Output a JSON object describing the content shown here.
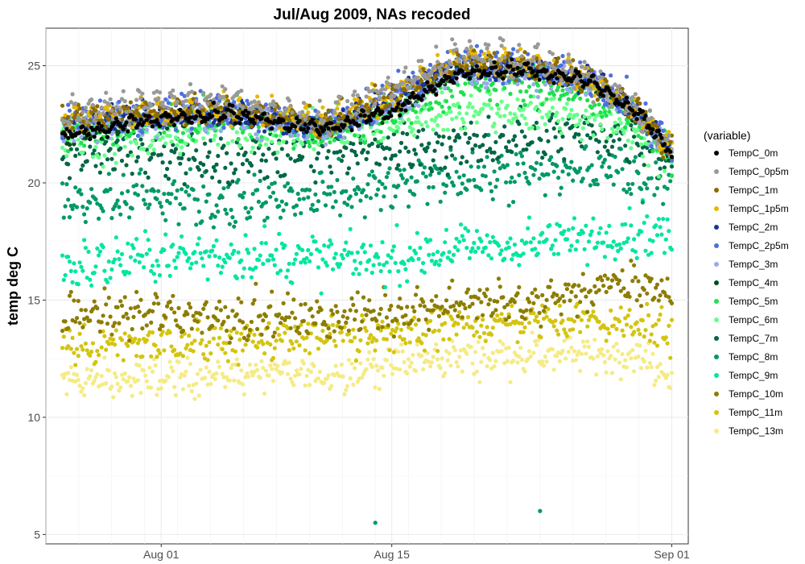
{
  "chart_data": {
    "type": "scatter",
    "title": "Jul/Aug 2009, NAs recoded",
    "xlabel": "",
    "ylabel": "temp deg C",
    "x_start": "2009-07-26",
    "x_end": "2009-09-01",
    "xlim": [
      "2009-07-25",
      "2009-09-02"
    ],
    "ylim": [
      4.6,
      26.6
    ],
    "x_ticks": [
      {
        "label": "Aug 01",
        "date": "2009-08-01"
      },
      {
        "label": "Aug 15",
        "date": "2009-08-15"
      },
      {
        "label": "Sep 01",
        "date": "2009-09-01"
      }
    ],
    "y_ticks": [
      5,
      10,
      15,
      20,
      25
    ],
    "grid": true,
    "legend": {
      "title": "(variable)",
      "position": "right"
    },
    "series": [
      {
        "name": "TempC_0m",
        "color": "#000000",
        "knots": [
          [
            0,
            21.9
          ],
          [
            5,
            22.6
          ],
          [
            10,
            22.9
          ],
          [
            16,
            22.2
          ],
          [
            20,
            23.0
          ],
          [
            24,
            24.6
          ],
          [
            28,
            24.8
          ],
          [
            32,
            24.3
          ],
          [
            35,
            22.9
          ],
          [
            37,
            21.2
          ]
        ],
        "spread": 0.12,
        "osc": 0.35
      },
      {
        "name": "TempC_0p5m",
        "color": "#999999",
        "knots": [
          [
            0,
            22.7
          ],
          [
            5,
            23.2
          ],
          [
            10,
            23.3
          ],
          [
            16,
            22.5
          ],
          [
            20,
            23.8
          ],
          [
            24,
            25.3
          ],
          [
            28,
            25.1
          ],
          [
            32,
            24.4
          ],
          [
            35,
            22.9
          ],
          [
            37,
            21.2
          ]
        ],
        "spread": 0.25,
        "osc": 0.8
      },
      {
        "name": "TempC_1m",
        "color": "#8B6C00",
        "knots": [
          [
            0,
            22.6
          ],
          [
            5,
            22.9
          ],
          [
            10,
            23.0
          ],
          [
            16,
            22.4
          ],
          [
            20,
            23.5
          ],
          [
            24,
            25.0
          ],
          [
            28,
            24.9
          ],
          [
            32,
            24.3
          ],
          [
            35,
            22.9
          ],
          [
            37,
            21.2
          ]
        ],
        "spread": 0.2,
        "osc": 0.6
      },
      {
        "name": "TempC_1p5m",
        "color": "#E6B800",
        "knots": [
          [
            0,
            22.6
          ],
          [
            5,
            22.9
          ],
          [
            10,
            23.1
          ],
          [
            16,
            22.4
          ],
          [
            20,
            23.6
          ],
          [
            24,
            25.1
          ],
          [
            28,
            25.0
          ],
          [
            32,
            24.3
          ],
          [
            35,
            22.9
          ],
          [
            37,
            21.2
          ]
        ],
        "spread": 0.2,
        "osc": 0.7
      },
      {
        "name": "TempC_2m",
        "color": "#1a3399",
        "knots": [
          [
            0,
            22.4
          ],
          [
            5,
            22.8
          ],
          [
            10,
            22.9
          ],
          [
            16,
            22.3
          ],
          [
            20,
            23.4
          ],
          [
            24,
            24.9
          ],
          [
            28,
            24.8
          ],
          [
            32,
            24.3
          ],
          [
            35,
            22.9
          ],
          [
            37,
            21.2
          ]
        ],
        "spread": 0.2,
        "osc": 0.55
      },
      {
        "name": "TempC_2p5m",
        "color": "#4d6fe0",
        "knots": [
          [
            0,
            22.4
          ],
          [
            5,
            22.9
          ],
          [
            10,
            23.0
          ],
          [
            16,
            22.3
          ],
          [
            20,
            23.5
          ],
          [
            24,
            25.0
          ],
          [
            28,
            24.8
          ],
          [
            32,
            24.3
          ],
          [
            35,
            22.9
          ],
          [
            37,
            21.2
          ]
        ],
        "spread": 0.3,
        "osc": 0.6
      },
      {
        "name": "TempC_3m",
        "color": "#99aaee",
        "knots": [
          [
            0,
            22.3
          ],
          [
            5,
            22.6
          ],
          [
            10,
            22.8
          ],
          [
            16,
            22.2
          ],
          [
            20,
            23.2
          ],
          [
            24,
            24.6
          ],
          [
            28,
            24.6
          ],
          [
            32,
            24.2
          ],
          [
            35,
            22.8
          ],
          [
            37,
            21.2
          ]
        ],
        "spread": 0.3,
        "osc": 0.4
      },
      {
        "name": "TempC_4m",
        "color": "#004d1a",
        "knots": [
          [
            0,
            21.8
          ],
          [
            5,
            22.6
          ],
          [
            10,
            22.9
          ],
          [
            16,
            22.5
          ],
          [
            20,
            23.0
          ],
          [
            24,
            24.7
          ],
          [
            28,
            24.7
          ],
          [
            32,
            24.2
          ],
          [
            35,
            22.9
          ],
          [
            37,
            21.1
          ]
        ],
        "spread": 0.15,
        "osc": 0.25
      },
      {
        "name": "TempC_5m",
        "color": "#1fe04d",
        "knots": [
          [
            0,
            22.1
          ],
          [
            5,
            22.4
          ],
          [
            10,
            22.7
          ],
          [
            16,
            22.0
          ],
          [
            20,
            22.7
          ],
          [
            24,
            24.0
          ],
          [
            28,
            24.2
          ],
          [
            32,
            23.6
          ],
          [
            35,
            22.6
          ],
          [
            37,
            21.0
          ]
        ],
        "spread": 0.35,
        "osc": 0.4
      },
      {
        "name": "TempC_6m",
        "color": "#66ff88",
        "knots": [
          [
            0,
            21.8
          ],
          [
            5,
            21.7
          ],
          [
            10,
            22.2
          ],
          [
            16,
            22.1
          ],
          [
            20,
            22.4
          ],
          [
            24,
            23.0
          ],
          [
            28,
            23.0
          ],
          [
            32,
            22.7
          ],
          [
            35,
            22.0
          ],
          [
            37,
            20.8
          ]
        ],
        "spread": 0.4,
        "osc": 0.5
      },
      {
        "name": "TempC_7m",
        "color": "#006644",
        "knots": [
          [
            0,
            21.3
          ],
          [
            5,
            21.2
          ],
          [
            10,
            20.7
          ],
          [
            16,
            21.4
          ],
          [
            20,
            21.2
          ],
          [
            24,
            21.4
          ],
          [
            28,
            21.8
          ],
          [
            32,
            22.0
          ],
          [
            35,
            21.7
          ],
          [
            37,
            20.8
          ]
        ],
        "spread": 0.45,
        "osc": 0.7
      },
      {
        "name": "TempC_8m",
        "color": "#009966",
        "knots": [
          [
            0,
            19.2
          ],
          [
            5,
            19.3
          ],
          [
            10,
            19.0
          ],
          [
            16,
            19.2
          ],
          [
            20,
            19.6
          ],
          [
            24,
            20.2
          ],
          [
            28,
            20.2
          ],
          [
            32,
            20.4
          ],
          [
            35,
            20.2
          ],
          [
            37,
            20.0
          ]
        ],
        "spread": 0.45,
        "osc": 0.8
      },
      {
        "name": "TempC_9m",
        "color": "#00e6a0",
        "knots": [
          [
            0,
            16.2
          ],
          [
            5,
            16.7
          ],
          [
            10,
            16.8
          ],
          [
            16,
            16.6
          ],
          [
            20,
            16.6
          ],
          [
            24,
            17.1
          ],
          [
            28,
            17.2
          ],
          [
            32,
            17.6
          ],
          [
            35,
            17.8
          ],
          [
            37,
            17.6
          ]
        ],
        "spread": 0.45,
        "osc": 0.7
      },
      {
        "name": "TempC_10m",
        "color": "#8c7d00",
        "knots": [
          [
            0,
            14.2
          ],
          [
            5,
            14.3
          ],
          [
            10,
            14.2
          ],
          [
            16,
            14.1
          ],
          [
            20,
            14.4
          ],
          [
            24,
            14.8
          ],
          [
            28,
            14.7
          ],
          [
            32,
            15.3
          ],
          [
            35,
            15.6
          ],
          [
            37,
            15.1
          ]
        ],
        "spread": 0.4,
        "osc": 0.6
      },
      {
        "name": "TempC_11m",
        "color": "#d4c410",
        "knots": [
          [
            0,
            12.9
          ],
          [
            5,
            13.1
          ],
          [
            10,
            13.1
          ],
          [
            16,
            13.3
          ],
          [
            20,
            13.3
          ],
          [
            24,
            13.8
          ],
          [
            28,
            14.0
          ],
          [
            32,
            14.1
          ],
          [
            35,
            13.8
          ],
          [
            37,
            13.5
          ]
        ],
        "spread": 0.4,
        "osc": 0.5
      },
      {
        "name": "TempC_13m",
        "color": "#f5eb85",
        "knots": [
          [
            0,
            11.5
          ],
          [
            5,
            11.5
          ],
          [
            10,
            11.8
          ],
          [
            16,
            11.7
          ],
          [
            20,
            12.2
          ],
          [
            24,
            12.5
          ],
          [
            28,
            12.6
          ],
          [
            32,
            12.6
          ],
          [
            35,
            12.5
          ],
          [
            37,
            11.6
          ]
        ],
        "spread": 0.35,
        "osc": 0.4
      }
    ],
    "outliers": [
      {
        "series": "TempC_8m",
        "date": "2009-08-14",
        "value": 5.5
      },
      {
        "series": "TempC_8m",
        "date": "2009-08-24",
        "value": 6.0
      }
    ]
  }
}
